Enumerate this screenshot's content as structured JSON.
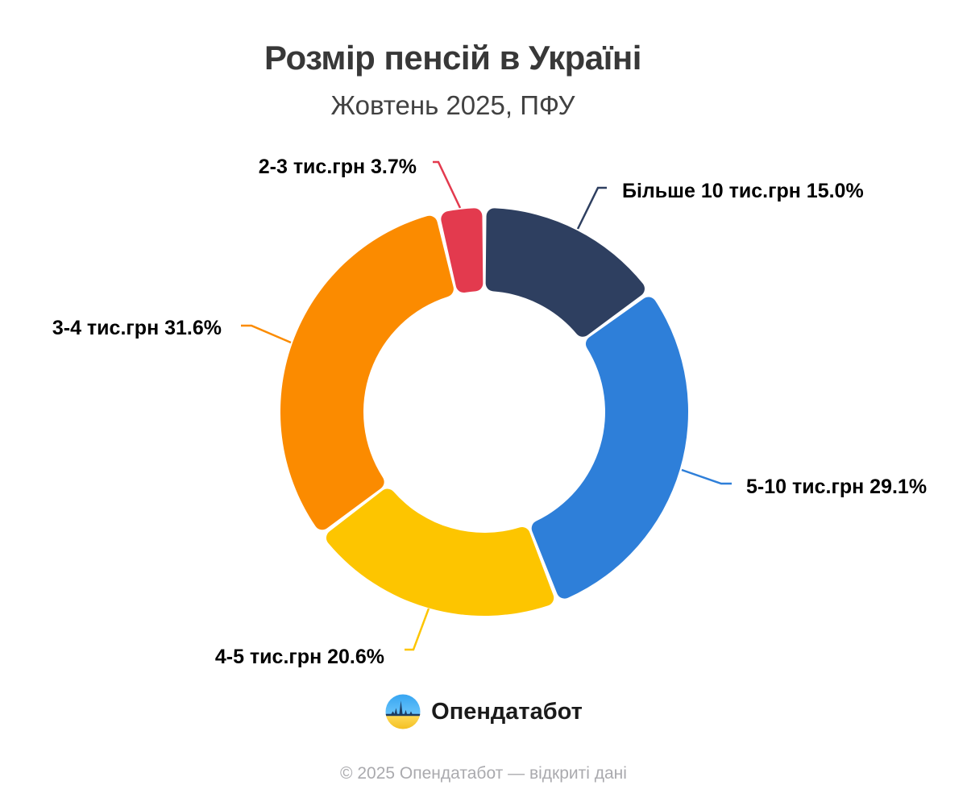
{
  "title": "Розмір пенсій в Україні",
  "subtitle": "Жовтень 2025, ПФУ",
  "logo": {
    "text": "Опендатабот",
    "icon": "opendatabot-flag-skyline-circle"
  },
  "footer": "© 2025 Опендатабот — відкриті дані",
  "colors": {
    "background": "#ffffff",
    "title_text": "#383838",
    "subtitle_text": "#414141",
    "label_text": "#000000",
    "footer_text": "#aaaaae",
    "logo_blue": "#41abf3",
    "logo_yellow": "#fccf35",
    "logo_silhouette": "#1d3d63"
  },
  "chart_data": {
    "type": "pie",
    "variant": "donut",
    "title": "Розмір пенсій в Україні",
    "subtitle": "Жовтень 2025, ПФУ",
    "units": "%",
    "start_angle_deg": 0,
    "direction": "clockwise",
    "legend_position": "outside-callouts",
    "slices": [
      {
        "slug": "over-10k",
        "label": "Більше 10 тис.грн",
        "value": 15.0,
        "display": "Більше 10 тис.грн 15.0%",
        "color": "#2e3f60"
      },
      {
        "slug": "5-10k",
        "label": "5-10 тис.грн",
        "value": 29.1,
        "display": "5-10 тис.грн 29.1%",
        "color": "#2e7fd9"
      },
      {
        "slug": "4-5k",
        "label": "4-5 тис.грн",
        "value": 20.6,
        "display": "4-5 тис.грн 20.6%",
        "color": "#fdc500"
      },
      {
        "slug": "3-4k",
        "label": "3-4 тис.грн",
        "value": 31.6,
        "display": "3-4 тис.грн 31.6%",
        "color": "#fb8b00"
      },
      {
        "slug": "2-3k",
        "label": "2-3 тис.грн",
        "value": 3.7,
        "display": "2-3 тис.грн 3.7%",
        "color": "#e33a4e"
      }
    ]
  }
}
